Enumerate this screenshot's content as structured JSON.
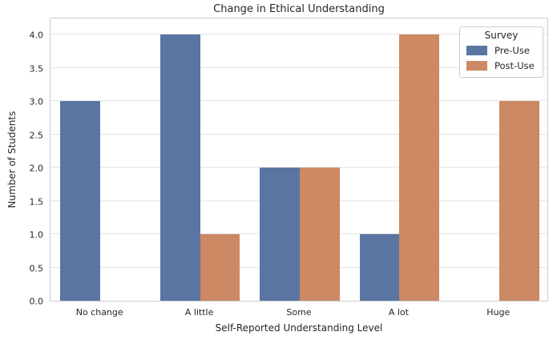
{
  "chart_data": {
    "type": "bar",
    "title": "Change in Ethical Understanding",
    "xlabel": "Self-Reported Understanding Level",
    "ylabel": "Number of Students",
    "categories": [
      "No change",
      "A little",
      "Some",
      "A lot",
      "Huge"
    ],
    "series": [
      {
        "name": "Pre-Use",
        "color": "#5A75A2",
        "values": [
          3,
          4,
          2,
          1,
          0
        ]
      },
      {
        "name": "Post-Use",
        "color": "#CC8963",
        "values": [
          0,
          1,
          2,
          4,
          3
        ]
      }
    ],
    "legend": {
      "title": "Survey",
      "position": "upper right"
    },
    "ylim": [
      0,
      4.27
    ],
    "ytick_labels": [
      "0.0",
      "0.5",
      "1.0",
      "1.5",
      "2.0",
      "2.5",
      "3.0",
      "3.5",
      "4.0"
    ],
    "grid": "horizontal",
    "colors": {
      "grid": "#E3E3E3",
      "spine": "#CCCCCC",
      "text": "#262626",
      "background": "#FFFFFF"
    }
  }
}
